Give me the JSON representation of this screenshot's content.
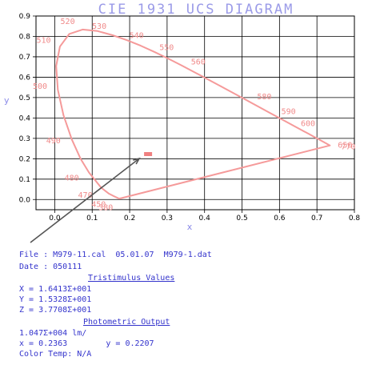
{
  "chart_data": {
    "type": "line",
    "title": "CIE  1931  UCS  DIAGRAM",
    "xlabel": "x",
    "ylabel": "y",
    "xlim": [
      -0.05,
      0.8
    ],
    "ylim": [
      -0.05,
      0.9
    ],
    "x_ticks": [
      "0.0",
      "0.1",
      "0.2",
      "0.3",
      "0.4",
      "0.5",
      "0.6",
      "0.7",
      "0.8"
    ],
    "y_ticks": [
      "0.0",
      "0.1",
      "0.2",
      "0.3",
      "0.4",
      "0.5",
      "0.6",
      "0.7",
      "0.8",
      "0.9"
    ],
    "grid": true,
    "series": [
      {
        "points": [
          [
            0.1741,
            0.005
          ],
          [
            0.1738,
            0.0049
          ],
          [
            0.1726,
            0.0048
          ],
          [
            0.1714,
            0.0051
          ],
          [
            0.1689,
            0.0069
          ],
          [
            0.1644,
            0.0109
          ],
          [
            0.1566,
            0.0177
          ],
          [
            0.144,
            0.0297
          ],
          [
            0.1241,
            0.0578
          ],
          [
            0.0913,
            0.1327
          ],
          [
            0.0687,
            0.2007
          ],
          [
            0.0454,
            0.295
          ],
          [
            0.0235,
            0.4127
          ],
          [
            0.0082,
            0.5384
          ],
          [
            0.0039,
            0.6548
          ],
          [
            0.0139,
            0.7502
          ],
          [
            0.0389,
            0.812
          ],
          [
            0.0743,
            0.8338
          ],
          [
            0.1142,
            0.8262
          ],
          [
            0.1547,
            0.8059
          ],
          [
            0.1929,
            0.7816
          ],
          [
            0.2296,
            0.7543
          ],
          [
            0.2658,
            0.7243
          ],
          [
            0.3016,
            0.6923
          ],
          [
            0.3373,
            0.6589
          ],
          [
            0.3731,
            0.6245
          ],
          [
            0.4087,
            0.5896
          ],
          [
            0.4441,
            0.5547
          ],
          [
            0.4788,
            0.5202
          ],
          [
            0.5125,
            0.4866
          ],
          [
            0.5448,
            0.4544
          ],
          [
            0.5752,
            0.4242
          ],
          [
            0.6029,
            0.3965
          ],
          [
            0.627,
            0.3725
          ],
          [
            0.6482,
            0.3514
          ],
          [
            0.6658,
            0.334
          ],
          [
            0.6801,
            0.3197
          ],
          [
            0.6915,
            0.3083
          ],
          [
            0.7006,
            0.2993
          ],
          [
            0.714,
            0.2859
          ],
          [
            0.7347,
            0.2653
          ],
          [
            0.1741,
            0.005
          ]
        ]
      }
    ],
    "wavelength_labels": [
      {
        "text": "380",
        "x": 0.1741,
        "y": 0.005
      },
      {
        "text": "450",
        "x": 0.1566,
        "y": 0.0177
      },
      {
        "text": "470",
        "x": 0.1241,
        "y": 0.0578
      },
      {
        "text": "480",
        "x": 0.0913,
        "y": 0.1327
      },
      {
        "text": "490",
        "x": 0.0454,
        "y": 0.295
      },
      {
        "text": "500",
        "x": 0.0082,
        "y": 0.5384
      },
      {
        "text": "510",
        "x": 0.0139,
        "y": 0.7502
      },
      {
        "text": "520",
        "x": 0.0743,
        "y": 0.8338
      },
      {
        "text": "530",
        "x": 0.1547,
        "y": 0.8059
      },
      {
        "text": "540",
        "x": 0.2296,
        "y": 0.7543
      },
      {
        "text": "550",
        "x": 0.3016,
        "y": 0.6923
      },
      {
        "text": "560",
        "x": 0.3731,
        "y": 0.6245
      },
      {
        "text": "580",
        "x": 0.5125,
        "y": 0.4866
      },
      {
        "text": "590",
        "x": 0.5752,
        "y": 0.4242
      },
      {
        "text": "600",
        "x": 0.627,
        "y": 0.3725
      },
      {
        "text": "650",
        "x": 0.726,
        "y": 0.274
      },
      {
        "text": "770",
        "x": 0.7347,
        "y": 0.2653
      }
    ],
    "measured_point": {
      "x": 0.2363,
      "y": 0.2207
    },
    "colors": {
      "locus": "#f59a9a",
      "marker": "#f08080",
      "axis_label": "#8a8ae8",
      "title": "#9b9be8",
      "grid": "#000000",
      "arrow": "#555555",
      "info_text": "#3333cc"
    }
  },
  "info": {
    "file_line": "File : M979-11.cal  05.01.07  M979-1.dat",
    "date_line": "Date : 050111",
    "tristimulus_heading": "Tristimulus Values",
    "x_value": "X = 1.6413Σ+001",
    "y_value": "Y = 1.5328Σ+001",
    "z_value": "Z = 3.7708Σ+001",
    "photometric_heading": "Photometric Output",
    "lumen_value": "1.047Σ+004 lm/",
    "chromaticity_line": "x = 0.2363        y = 0.2207",
    "color_temp": "Color Temp: N/A"
  }
}
